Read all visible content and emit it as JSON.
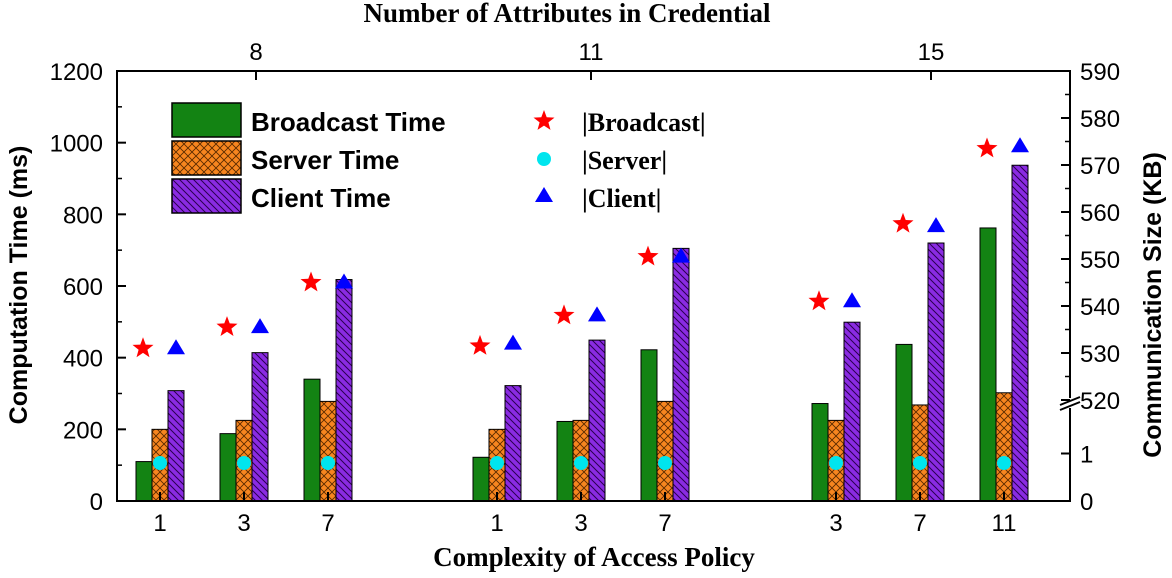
{
  "chart_data": {
    "type": "bar",
    "top_title": "Number of Attributes in Credential",
    "xlabel": "Complexity of Access Policy",
    "ylabel_left": "Computation Time (ms)",
    "ylabel_right": "Communication Size (KB)",
    "ylim_left": [
      0,
      1200
    ],
    "left_ticks": [
      "0",
      "200",
      "400",
      "600",
      "800",
      "1000",
      "1200"
    ],
    "right_ticks": [
      "0",
      "1",
      "520",
      "530",
      "540",
      "550",
      "560",
      "570",
      "580",
      "590"
    ],
    "right_axis_break": "between 1 and 520",
    "groups": [
      {
        "attributes": "8",
        "policies": [
          "1",
          "3",
          "7"
        ]
      },
      {
        "attributes": "11",
        "policies": [
          "1",
          "3",
          "7"
        ]
      },
      {
        "attributes": "15",
        "policies": [
          "3",
          "7",
          "11"
        ]
      }
    ],
    "series": [
      {
        "name": "Broadcast Time",
        "axis": "left",
        "kind": "bar",
        "color": "#138313",
        "values": [
          110,
          188,
          340,
          122,
          222,
          422,
          272,
          437,
          762
        ]
      },
      {
        "name": "Server Time",
        "axis": "left",
        "kind": "bar",
        "color": "#f7851f",
        "values": [
          200,
          225,
          278,
          200,
          225,
          278,
          225,
          268,
          302
        ]
      },
      {
        "name": "Client Time",
        "axis": "left",
        "kind": "bar",
        "color": "#8a2be2",
        "values": [
          308,
          414,
          618,
          322,
          449,
          705,
          499,
          720,
          937
        ]
      },
      {
        "name": "|Broadcast|",
        "axis": "right",
        "kind": "marker",
        "marker": "star",
        "color": "#ff0000",
        "values": [
          531,
          535.5,
          545,
          531.5,
          538,
          550.5,
          541,
          557.5,
          573.5
        ]
      },
      {
        "name": "|Server|",
        "axis": "right",
        "kind": "marker",
        "marker": "circle",
        "color": "#00e5ee",
        "values": [
          0.8,
          0.8,
          0.8,
          0.8,
          0.8,
          0.8,
          0.8,
          0.8,
          0.8
        ]
      },
      {
        "name": "|Client|",
        "axis": "right",
        "kind": "marker",
        "marker": "triangle",
        "color": "#0000ff",
        "values": [
          531,
          535.5,
          545,
          532,
          538,
          550.5,
          541,
          557,
          574
        ]
      }
    ],
    "legend_placement": "top-left",
    "grid": false
  }
}
